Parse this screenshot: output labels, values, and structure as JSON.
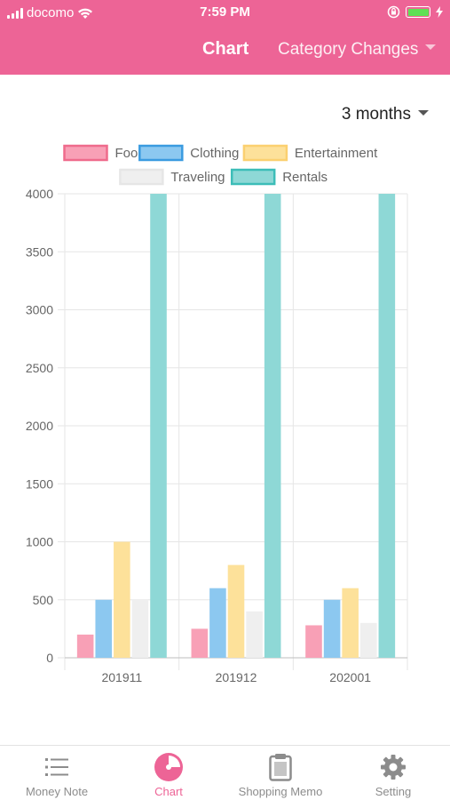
{
  "status_bar": {
    "carrier": "docomo",
    "time": "7:59 PM",
    "battery_level": 1.0
  },
  "header": {
    "title": "Chart",
    "category_label": "Category Changes"
  },
  "period_select": {
    "value": "3 months"
  },
  "chart_data": {
    "type": "bar",
    "categories": [
      "201911",
      "201912",
      "202001"
    ],
    "series": [
      {
        "name": "Food",
        "values": [
          200,
          250,
          280
        ],
        "fill": "#f8a0b6",
        "stroke": "#ef6b8c"
      },
      {
        "name": "Clothing",
        "values": [
          500,
          600,
          500
        ],
        "fill": "#8cc8f0",
        "stroke": "#3a9be0"
      },
      {
        "name": "Entertainment",
        "values": [
          1000,
          800,
          600
        ],
        "fill": "#fde19a",
        "stroke": "#fbd070"
      },
      {
        "name": "Traveling",
        "values": [
          500,
          400,
          300
        ],
        "fill": "#efefef",
        "stroke": "#e6e6e6"
      },
      {
        "name": "Rentals",
        "values": [
          4000,
          4000,
          4000
        ],
        "fill": "#8ed8d6",
        "stroke": "#3cbdb8"
      }
    ],
    "y_ticks": [
      "0",
      "500",
      "1000",
      "1500",
      "2000",
      "2500",
      "3000",
      "3500",
      "4000"
    ],
    "ylim": [
      0,
      4000
    ],
    "grid": true,
    "legend_position": "top"
  },
  "tab_bar": {
    "tabs": [
      {
        "label": "Money Note",
        "icon": "list-icon",
        "active": false
      },
      {
        "label": "Chart",
        "icon": "pie-chart-icon",
        "active": true
      },
      {
        "label": "Shopping Memo",
        "icon": "clipboard-icon",
        "active": false
      },
      {
        "label": "Setting",
        "icon": "gear-icon",
        "active": false
      }
    ]
  },
  "colors": {
    "accent": "#ed6496",
    "inactive": "#8c8c8c",
    "grid": "#e6e6e6"
  }
}
